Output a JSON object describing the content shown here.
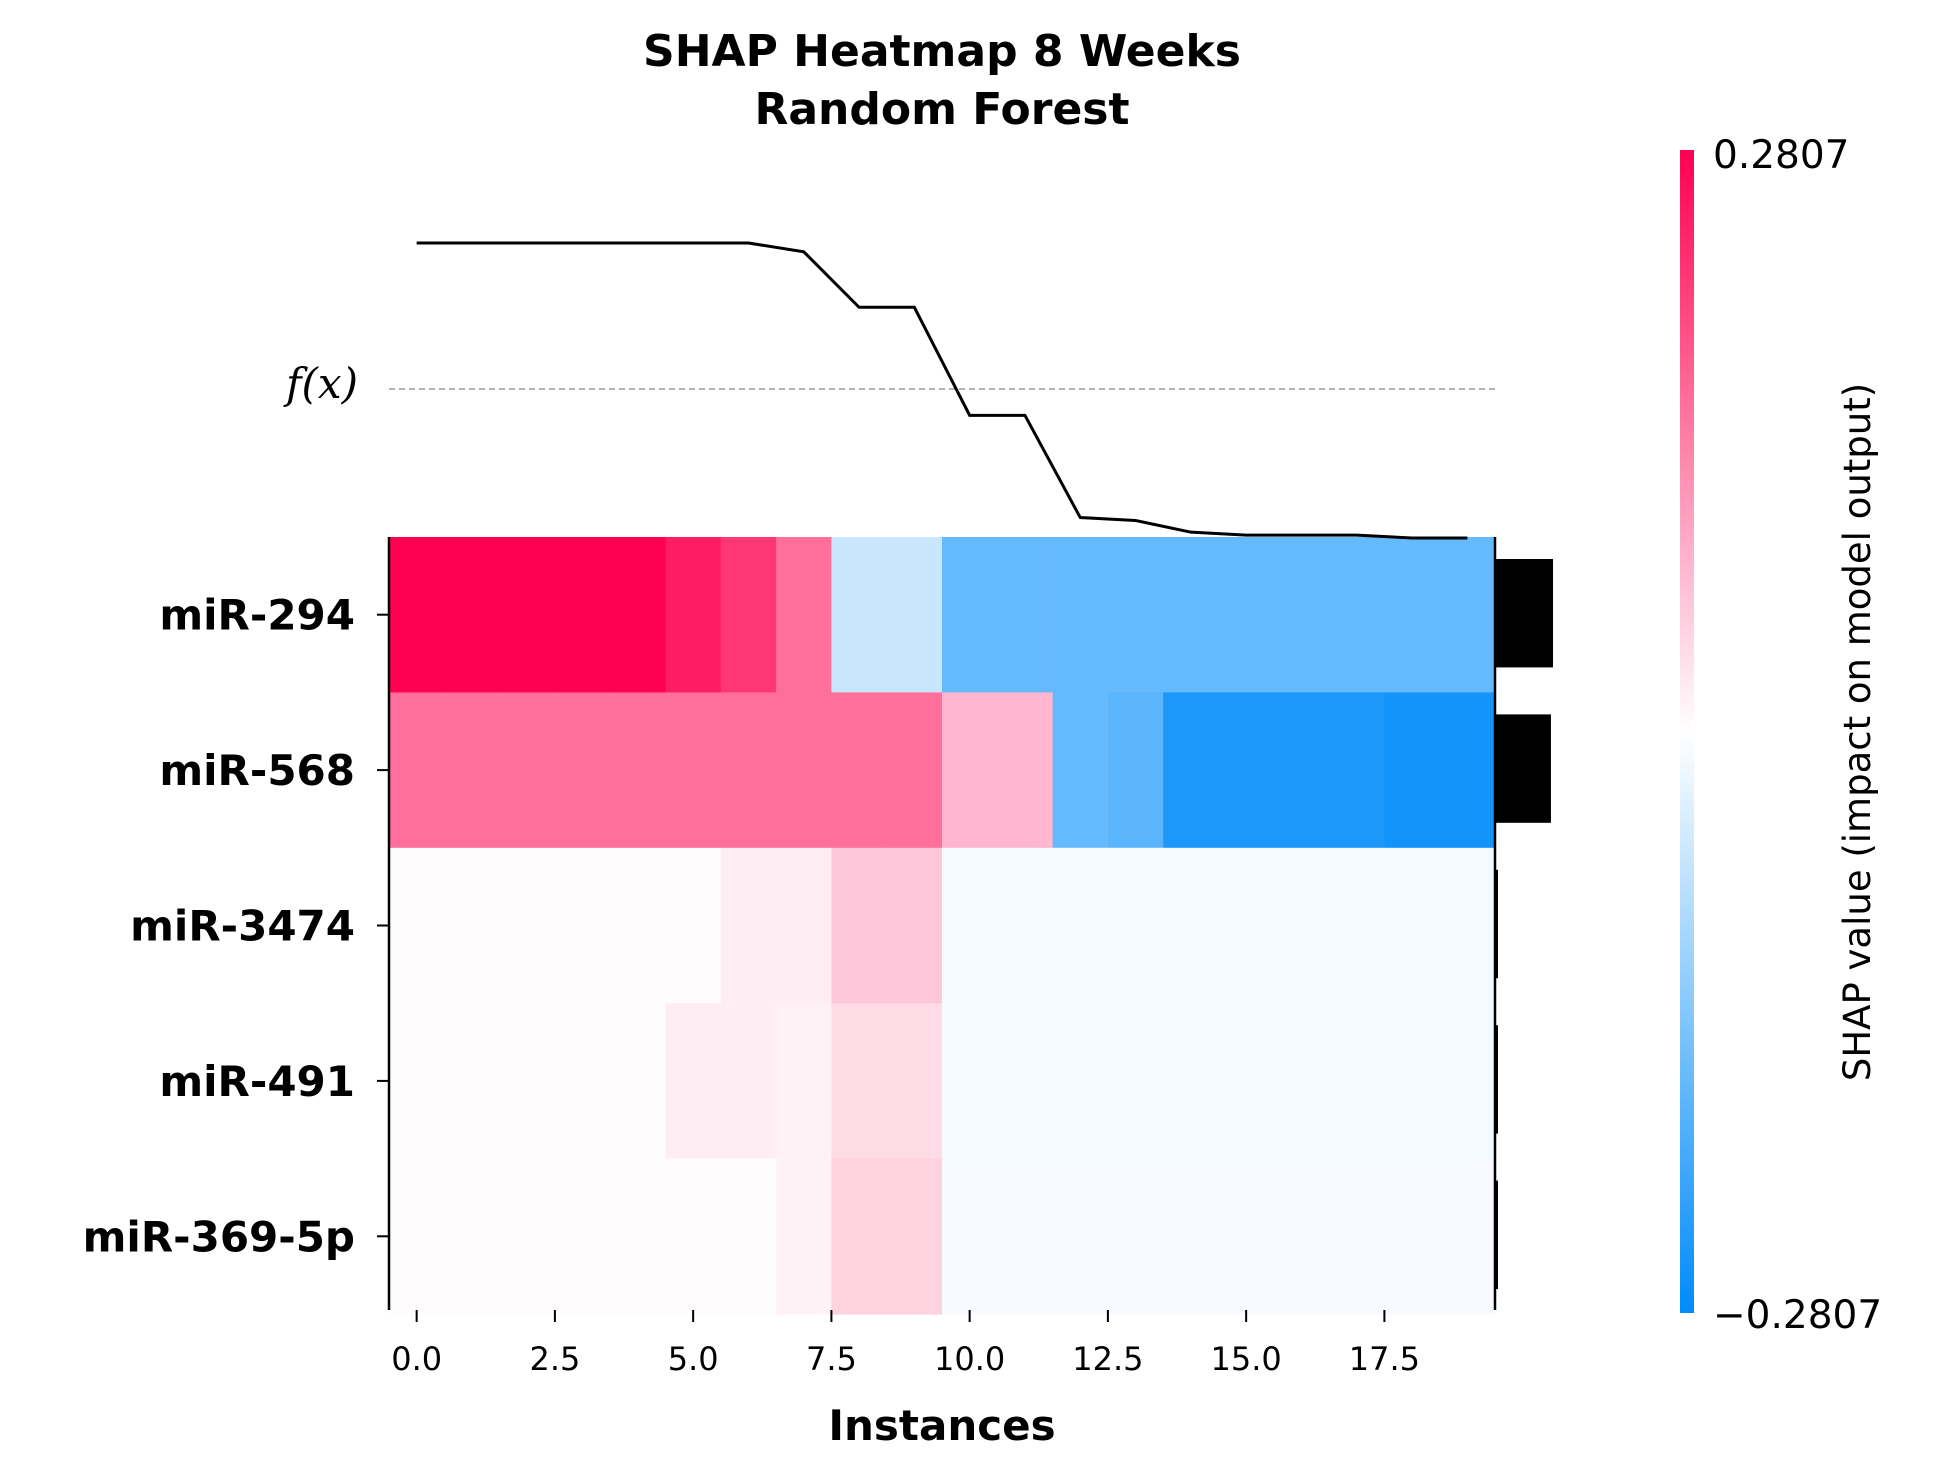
{
  "chart_data": {
    "type": "heatmap",
    "title": "SHAP Heatmap 8 Weeks",
    "subtitle": "Random Forest",
    "xlabel": "Instances",
    "x_ticks": [
      "0.0",
      "2.5",
      "5.0",
      "7.5",
      "10.0",
      "12.5",
      "15.0",
      "17.5"
    ],
    "x_tick_values": [
      0,
      2.5,
      5,
      7.5,
      10,
      12.5,
      15,
      17.5
    ],
    "xlim": [
      -0.5,
      19.5
    ],
    "fx_label": "f(x)",
    "features": [
      "miR-294",
      "miR-568",
      "miR-3474",
      "miR-491",
      "miR-369-5p"
    ],
    "instances": [
      0,
      1,
      2,
      3,
      4,
      5,
      6,
      7,
      8,
      9,
      10,
      11,
      12,
      13,
      14,
      15,
      16,
      17,
      18,
      19
    ],
    "shap_values": [
      [
        0.2807,
        0.2807,
        0.2807,
        0.2807,
        0.2807,
        0.25,
        0.22,
        0.16,
        -0.06,
        -0.06,
        -0.17,
        -0.17,
        -0.17,
        -0.17,
        -0.17,
        -0.17,
        -0.17,
        -0.17,
        -0.17,
        -0.17
      ],
      [
        0.16,
        0.16,
        0.16,
        0.16,
        0.16,
        0.16,
        0.16,
        0.16,
        0.16,
        0.16,
        0.08,
        0.08,
        -0.17,
        -0.18,
        -0.25,
        -0.25,
        -0.25,
        -0.25,
        -0.26,
        -0.26
      ],
      [
        0.003,
        0.003,
        0.003,
        0.003,
        0.003,
        0.003,
        0.02,
        0.02,
        0.06,
        0.06,
        -0.012,
        -0.012,
        -0.012,
        -0.012,
        -0.012,
        -0.012,
        -0.012,
        -0.012,
        -0.012,
        -0.012
      ],
      [
        0.003,
        0.003,
        0.003,
        0.003,
        0.003,
        0.02,
        0.02,
        0.015,
        0.04,
        0.04,
        -0.011,
        -0.011,
        -0.011,
        -0.011,
        -0.011,
        -0.011,
        -0.011,
        -0.011,
        -0.011,
        -0.011
      ],
      [
        0.003,
        0.003,
        0.003,
        0.003,
        0.003,
        0.003,
        0.003,
        0.015,
        0.05,
        0.05,
        -0.009,
        -0.009,
        -0.009,
        -0.009,
        -0.009,
        -0.009,
        -0.009,
        -0.009,
        -0.009,
        -0.009
      ]
    ],
    "fx_values": [
      1.0,
      1.0,
      1.0,
      1.0,
      1.0,
      1.0,
      1.0,
      0.97,
      0.78,
      0.78,
      0.41,
      0.41,
      0.06,
      0.05,
      0.01,
      0.0,
      0.0,
      0.0,
      -0.01,
      -0.01
    ],
    "fx_baseline": 0.5,
    "feature_importance": [
      0.085,
      0.082,
      0.004,
      0.003,
      0.003
    ],
    "colorbar": {
      "min": -0.2807,
      "max": 0.2807,
      "min_label": "−0.2807",
      "max_label": "0.2807",
      "label": "SHAP value (impact on model output)",
      "low_color": "#008bfb",
      "mid_color": "#ffffff",
      "high_color": "#ff0052"
    },
    "grid": false
  }
}
